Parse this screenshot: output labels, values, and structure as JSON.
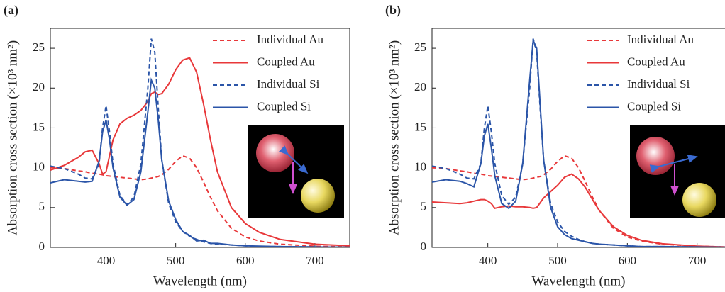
{
  "chart_data": [
    {
      "type": "line",
      "panel_label": "(a)",
      "xlabel": "Wavelength (nm)",
      "ylabel": "Absorption cross section (×10³ nm²)",
      "x": [
        320,
        340,
        360,
        370,
        380,
        390,
        395,
        400,
        405,
        410,
        420,
        430,
        440,
        450,
        460,
        465,
        470,
        475,
        480,
        490,
        500,
        510,
        520,
        530,
        540,
        550,
        560,
        580,
        600,
        620,
        650,
        700,
        750
      ],
      "series": [
        {
          "name": "Individual Au",
          "color": "#e8383a",
          "linestyle": "dashed",
          "values": [
            10,
            9.9,
            9.6,
            9.5,
            9.3,
            9.2,
            9.1,
            9.0,
            8.95,
            8.9,
            8.8,
            8.7,
            8.6,
            8.5,
            8.6,
            8.7,
            8.8,
            8.9,
            9.1,
            9.8,
            10.8,
            11.5,
            11.2,
            10.0,
            8.2,
            6.3,
            4.6,
            2.4,
            1.3,
            0.8,
            0.4,
            0.15,
            0.05
          ]
        },
        {
          "name": "Coupled Au",
          "color": "#e8383a",
          "linestyle": "solid",
          "values": [
            9.7,
            10.3,
            11.3,
            12.0,
            12.2,
            10.5,
            9.2,
            9.5,
            11.5,
            13.5,
            15.5,
            16.2,
            16.6,
            17.2,
            18.3,
            19.3,
            19.5,
            19.2,
            19.3,
            20.5,
            22.3,
            23.5,
            23.8,
            22.0,
            18.0,
            13.5,
            9.5,
            5.0,
            3.0,
            1.9,
            1.0,
            0.4,
            0.2
          ]
        },
        {
          "name": "Individual Si",
          "color": "#2b55a8",
          "linestyle": "dashed",
          "values": [
            10.2,
            9.9,
            9.2,
            8.7,
            8.6,
            10.5,
            15,
            17.8,
            14.5,
            10.5,
            6.5,
            5.4,
            6.3,
            10.5,
            20,
            26.2,
            24.5,
            17.5,
            11,
            5.5,
            3.2,
            2.0,
            1.4,
            1.0,
            0.7,
            0.5,
            0.4,
            0.3,
            0.2,
            0.1,
            0.1,
            0.05,
            0.02
          ]
        },
        {
          "name": "Coupled Si",
          "color": "#2b55a8",
          "linestyle": "solid",
          "values": [
            8.1,
            8.5,
            8.3,
            8.2,
            8.3,
            10.8,
            14.5,
            16,
            13.5,
            10,
            6.3,
            5.3,
            6.0,
            9.5,
            17,
            21,
            20,
            16,
            11,
            5.8,
            3.5,
            2.0,
            1.5,
            0.8,
            0.9,
            0.5,
            0.5,
            0.3,
            0.2,
            0.15,
            0.1,
            0.05,
            0.02
          ]
        }
      ],
      "xlim": [
        320,
        750
      ],
      "ylim": [
        0,
        27.5
      ],
      "xticks": [
        400,
        500,
        600,
        700
      ],
      "yticks": [
        0,
        5,
        10,
        15,
        20,
        25
      ],
      "legend": "upper right"
    },
    {
      "type": "line",
      "panel_label": "(b)",
      "xlabel": "Wavelength (nm)",
      "ylabel": "Absorption cross section (×10³ nm²)",
      "x": [
        320,
        340,
        360,
        370,
        380,
        390,
        395,
        400,
        405,
        410,
        420,
        430,
        440,
        450,
        460,
        465,
        470,
        475,
        480,
        490,
        500,
        510,
        520,
        530,
        540,
        550,
        560,
        580,
        600,
        620,
        650,
        700,
        740
      ],
      "series": [
        {
          "name": "Individual Au",
          "color": "#e8383a",
          "linestyle": "dashed",
          "values": [
            10,
            9.9,
            9.6,
            9.5,
            9.3,
            9.2,
            9.1,
            9.0,
            8.95,
            8.9,
            8.8,
            8.7,
            8.6,
            8.5,
            8.6,
            8.7,
            8.8,
            8.9,
            9.1,
            9.8,
            10.8,
            11.5,
            11.2,
            10.0,
            8.2,
            6.3,
            4.6,
            2.4,
            1.3,
            0.8,
            0.4,
            0.15,
            0.05
          ]
        },
        {
          "name": "Coupled Au",
          "color": "#e8383a",
          "linestyle": "solid",
          "values": [
            5.7,
            5.6,
            5.5,
            5.6,
            5.8,
            6.0,
            6.0,
            5.8,
            5.5,
            4.9,
            5.1,
            5.2,
            5.1,
            5.1,
            5.0,
            4.9,
            5.0,
            5.6,
            6.2,
            7.0,
            7.8,
            8.8,
            9.2,
            8.6,
            7.5,
            6.0,
            4.6,
            2.6,
            1.5,
            0.9,
            0.45,
            0.15,
            0.05
          ]
        },
        {
          "name": "Individual Si",
          "color": "#2b55a8",
          "linestyle": "dashed",
          "values": [
            10.2,
            9.9,
            9.2,
            8.7,
            8.6,
            10.5,
            15,
            17.8,
            14.5,
            10.5,
            6.5,
            5.4,
            6.3,
            10.5,
            20,
            26.2,
            24.5,
            17.5,
            11,
            5.5,
            3.2,
            2.0,
            1.4,
            1.0,
            0.7,
            0.5,
            0.4,
            0.3,
            0.2,
            0.1,
            0.1,
            0.05,
            0.02
          ]
        },
        {
          "name": "Coupled Si",
          "color": "#2b55a8",
          "linestyle": "solid",
          "values": [
            8.2,
            8.5,
            8.3,
            8.0,
            7.6,
            10.5,
            14,
            15.5,
            12.5,
            9,
            5.5,
            4.9,
            5.8,
            10.5,
            21,
            26,
            25,
            18,
            11,
            5,
            2.6,
            1.6,
            1.1,
            0.9,
            0.7,
            0.5,
            0.4,
            0.3,
            0.2,
            0.1,
            0.1,
            0.05,
            0.02
          ]
        }
      ],
      "xlim": [
        320,
        740
      ],
      "ylim": [
        0,
        27.5
      ],
      "xticks": [
        400,
        500,
        600,
        700
      ],
      "yticks": [
        0,
        5,
        10,
        15,
        20,
        25
      ],
      "legend": "upper right"
    }
  ]
}
